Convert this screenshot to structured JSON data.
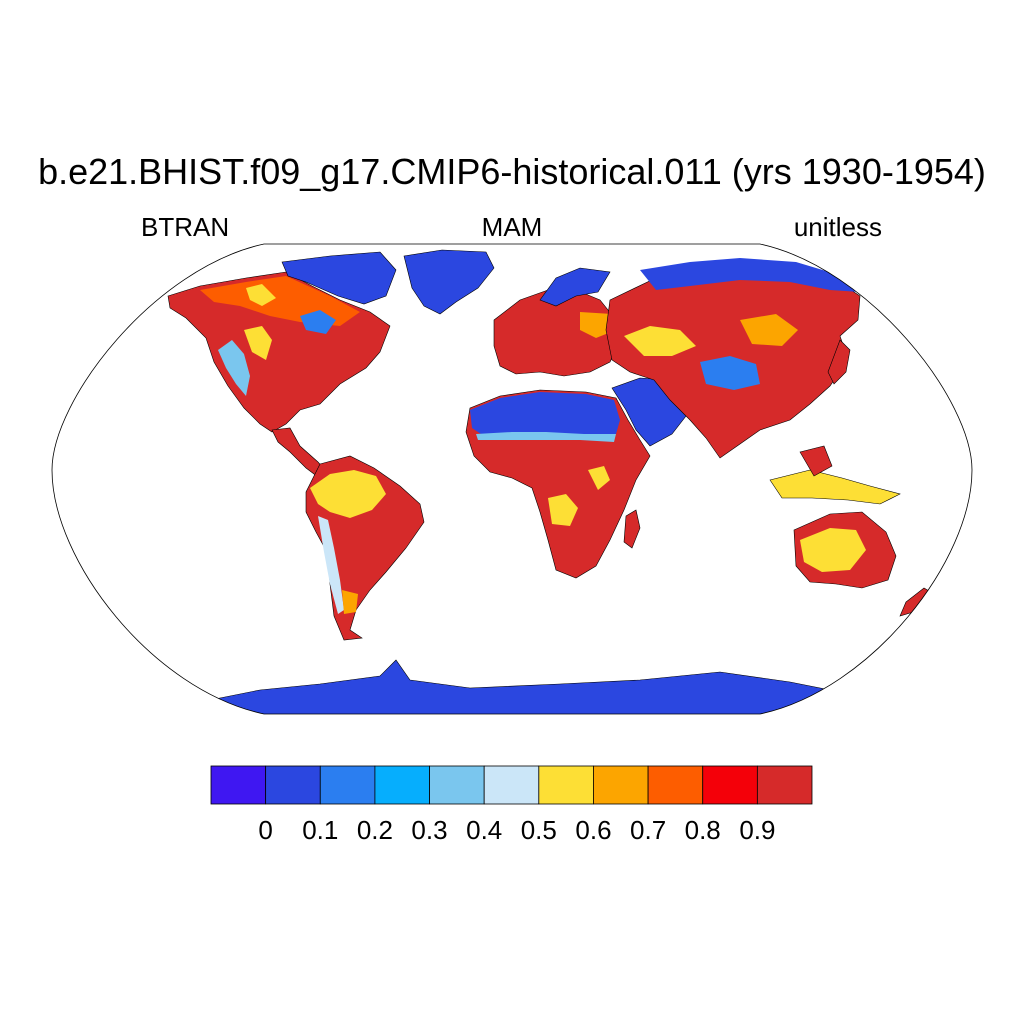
{
  "title": "b.e21.BHIST.f09_g17.CMIP6-historical.011 (yrs 1930-1954)",
  "variable_label": "BTRAN",
  "season_label": "MAM",
  "units_label": "unitless",
  "map": {
    "projection": "Robinson",
    "missing_color": "#ffffff",
    "regions": [
      {
        "name": "North America",
        "dominant_color": "#d62a2a"
      },
      {
        "name": "Greenland",
        "dominant_color": "#2b47e0"
      },
      {
        "name": "South America",
        "dominant_color": "#d62a2a"
      },
      {
        "name": "Europe",
        "dominant_color": "#d62a2a"
      },
      {
        "name": "Africa",
        "dominant_color": "#d62a2a"
      },
      {
        "name": "Sahara",
        "dominant_color": "#2b47e0"
      },
      {
        "name": "Arabia",
        "dominant_color": "#2b47e0"
      },
      {
        "name": "Asia",
        "dominant_color": "#d62a2a"
      },
      {
        "name": "Australia",
        "dominant_color": "#d62a2a"
      },
      {
        "name": "Antarctica",
        "dominant_color": "#2b47e0"
      }
    ]
  },
  "colorbar": {
    "colors": [
      "#3f17f2",
      "#2b47e0",
      "#2b7ef0",
      "#06aefd",
      "#7ac6ee",
      "#cbe6f8",
      "#fddf35",
      "#fca500",
      "#fd5d00",
      "#f40009",
      "#d62a2a"
    ],
    "tick_labels": [
      "0",
      "0.1",
      "0.2",
      "0.3",
      "0.4",
      "0.5",
      "0.6",
      "0.7",
      "0.8",
      "0.9"
    ]
  }
}
